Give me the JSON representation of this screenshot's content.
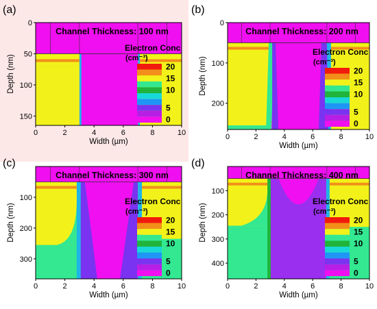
{
  "chart_data": [
    {
      "type": "heatmap",
      "panel_label": "(a)",
      "title": "Channel Thickness: 100 nm",
      "xlabel": "Width (µm)",
      "ylabel": "Depth (nm)",
      "xlim": [
        0,
        10
      ],
      "ylim": [
        165,
        0
      ],
      "xticks": [
        "0",
        "2",
        "4",
        "6",
        "8",
        "10"
      ],
      "yticks": [
        {
          "value": 0,
          "label": "0"
        },
        {
          "value": 50,
          "label": "50"
        },
        {
          "value": 100,
          "label": "100"
        },
        {
          "value": 150,
          "label": "150"
        }
      ],
      "channel_bottom_depth": 50,
      "gate_x": [
        3.0,
        7.0
      ],
      "legend_title": "Electron Conc",
      "legend_unit": "(cm⁻³)"
    },
    {
      "type": "heatmap",
      "panel_label": "(b)",
      "title": "Channel Thickness: 200 nm",
      "xlabel": "Width (µm)",
      "ylabel": "Depth (nm)",
      "xlim": [
        0,
        10
      ],
      "ylim": [
        265,
        0
      ],
      "xticks": [
        "0",
        "2",
        "4",
        "6",
        "8",
        "10"
      ],
      "yticks": [
        {
          "value": 0,
          "label": "0"
        },
        {
          "value": 100,
          "label": "100"
        },
        {
          "value": 200,
          "label": "200"
        }
      ],
      "channel_bottom_depth": 50,
      "gate_x": [
        3.0,
        7.0
      ],
      "legend_title": "Electron Conc",
      "legend_unit": "(cm⁻³)"
    },
    {
      "type": "heatmap",
      "panel_label": "(c)",
      "title": "Channel Thickness: 300 nm",
      "xlabel": "Width (µm)",
      "ylabel": "Depth (nm)",
      "xlim": [
        0,
        10
      ],
      "ylim": [
        365,
        0
      ],
      "xticks": [
        "0",
        "2",
        "4",
        "6",
        "8",
        "10"
      ],
      "yticks": [
        {
          "value": 100,
          "label": "100"
        },
        {
          "value": 200,
          "label": "200"
        },
        {
          "value": 300,
          "label": "300"
        }
      ],
      "channel_bottom_depth": 50,
      "gate_x": [
        3.0,
        7.0
      ],
      "legend_title": "Electron Conc",
      "legend_unit": "(cm⁻³)"
    },
    {
      "type": "heatmap",
      "panel_label": "(d)",
      "title": "Channel Thickness: 400 nm",
      "xlabel": "Width (µm)",
      "ylabel": "Depth (nm)",
      "xlim": [
        0,
        10
      ],
      "ylim": [
        465,
        0
      ],
      "xticks": [
        "0",
        "2",
        "4",
        "6",
        "8",
        "10"
      ],
      "yticks": [
        {
          "value": 100,
          "label": "100"
        },
        {
          "value": 200,
          "label": "200"
        },
        {
          "value": 300,
          "label": "300"
        },
        {
          "value": 400,
          "label": "400"
        }
      ],
      "channel_bottom_depth": 50,
      "gate_x": [
        3.0,
        7.0
      ],
      "legend_title": "Electron Conc",
      "legend_unit": "(cm⁻³)"
    }
  ],
  "legend_levels": [
    {
      "label": "20",
      "color": "#f21a0c"
    },
    {
      "label": "",
      "color": "#f28f1a"
    },
    {
      "label": "15",
      "color": "#f2f21a"
    },
    {
      "label": "",
      "color": "#33e891"
    },
    {
      "label": "10",
      "color": "#20b43c"
    },
    {
      "label": "",
      "color": "#19d8d8"
    },
    {
      "label": "",
      "color": "#1f95f5"
    },
    {
      "label": "5",
      "color": "#7a33f0"
    },
    {
      "label": "",
      "color": "#b81fe6"
    },
    {
      "label": "0",
      "color": "#f00ff0"
    }
  ],
  "colors": {
    "depleted": "#f00ff0",
    "depleted_purple": "#9a2ff0",
    "source_drain": "#f2f21a",
    "bulk_green": "#33e891",
    "edge_cyan": "#1fb4e8",
    "panel_a_background": "#fde8e8"
  }
}
